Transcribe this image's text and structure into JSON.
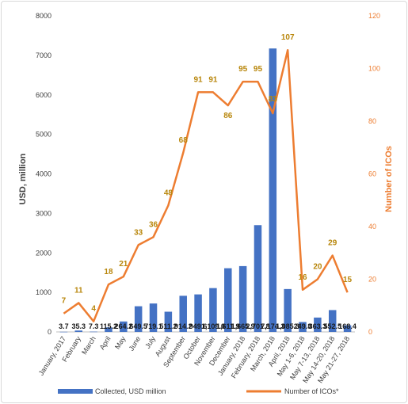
{
  "chart_data": {
    "type": "bar+line",
    "categories": [
      "January, 2017",
      "February",
      "March",
      "April",
      "May",
      "June",
      "July",
      "August",
      "September",
      "October",
      "November",
      "December",
      "January, 2018",
      "February, 2018",
      "March, 2018",
      "April, 2018",
      "May 1-6, 2018",
      "May 7-13, 2018",
      "May 14-20, 2018",
      "May 21-27, 2018"
    ],
    "series": [
      {
        "name": "Collected, USD million",
        "type": "bar",
        "axis": "left",
        "color": "#4472c4",
        "values": [
          3.7,
          35.3,
          7.3,
          115.2,
          264.2,
          649.5,
          719.1,
          511.2,
          914.2,
          949.6,
          1109.0,
          1611.9,
          1665.9,
          2701.8,
          7174.3,
          1085.3,
          249.8,
          363.3,
          552.5,
          168.4
        ],
        "labels": [
          "3.7",
          "35.3",
          "7.3",
          "115.2",
          "264.2",
          "649.5",
          "719.1",
          "511.2",
          "914.2",
          "949.6",
          "1,109.0",
          "1,611.9",
          "1,665.9",
          "2,701.8",
          "7,174.3",
          "1,085.3",
          "249.8",
          "363.3",
          "552.5",
          "168.4"
        ]
      },
      {
        "name": "Number of ICOs*",
        "type": "line",
        "axis": "right",
        "color": "#ed7d31",
        "values": [
          7,
          11,
          4,
          18,
          21,
          33,
          36,
          48,
          68,
          91,
          91,
          86,
          95,
          95,
          83,
          107,
          16,
          20,
          29,
          15
        ],
        "labels": [
          "7",
          "11",
          "4",
          "18",
          "21",
          "33",
          "36",
          "48",
          "68",
          "91",
          "91",
          "86",
          "95",
          "95",
          "83",
          "107",
          "16",
          "20",
          "29",
          "15"
        ]
      }
    ],
    "ylabel": "USD, million",
    "y2label": "Number of ICOs",
    "ylim": [
      0,
      8000
    ],
    "y2lim": [
      0,
      120
    ],
    "yticks": [
      "0",
      "1000",
      "2000",
      "3000",
      "4000",
      "5000",
      "6000",
      "7000",
      "8000"
    ],
    "y2ticks": [
      "0",
      "20",
      "40",
      "60",
      "80",
      "100",
      "120"
    ],
    "line_label_color": "#b8860b",
    "axis2_color": "#ed7d31",
    "grid": false,
    "legend": "bottom"
  }
}
